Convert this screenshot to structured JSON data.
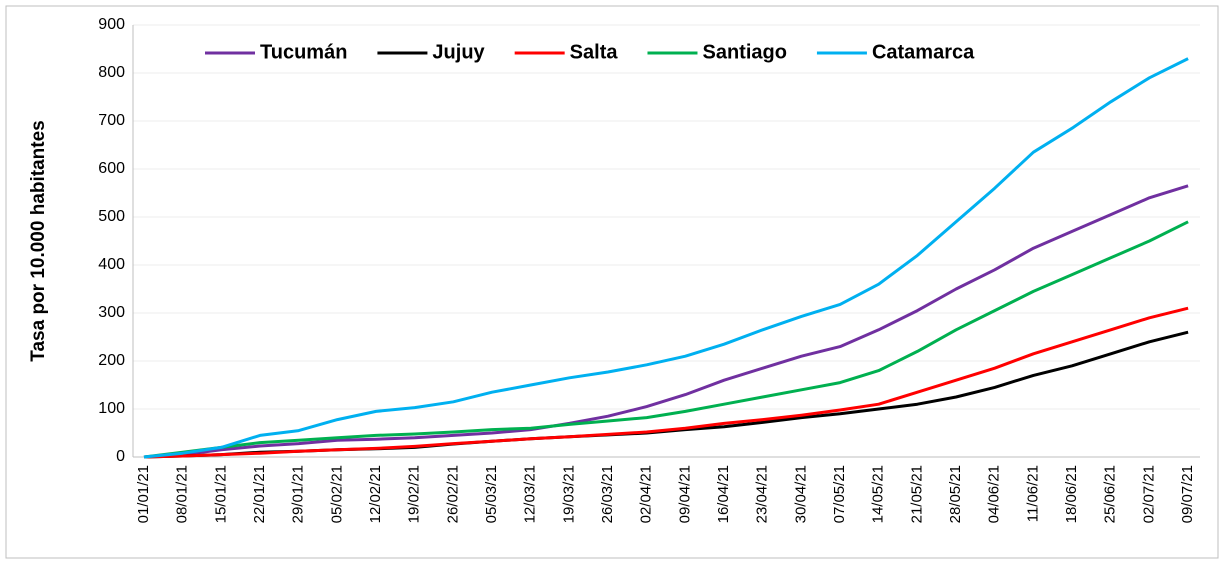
{
  "chart_data": {
    "type": "line",
    "y_label": "Tasa por 10.000 habitantes",
    "categories": [
      "01/01/21",
      "08/01/21",
      "15/01/21",
      "22/01/21",
      "29/01/21",
      "05/02/21",
      "12/02/21",
      "19/02/21",
      "26/02/21",
      "05/03/21",
      "12/03/21",
      "19/03/21",
      "26/03/21",
      "02/04/21",
      "09/04/21",
      "16/04/21",
      "23/04/21",
      "30/04/21",
      "07/05/21",
      "14/05/21",
      "21/05/21",
      "28/05/21",
      "04/06/21",
      "11/06/21",
      "18/06/21",
      "25/06/21",
      "02/07/21",
      "09/07/21"
    ],
    "series": [
      {
        "name": "Tucumán",
        "color": "#7030a0",
        "values": [
          0,
          5,
          15,
          23,
          28,
          35,
          37,
          40,
          45,
          50,
          57,
          70,
          85,
          105,
          130,
          160,
          185,
          210,
          230,
          265,
          305,
          350,
          390,
          435,
          470,
          505,
          540,
          565
        ]
      },
      {
        "name": "Jujuy",
        "color": "#000000",
        "values": [
          0,
          2,
          5,
          10,
          12,
          15,
          17,
          20,
          27,
          33,
          38,
          42,
          46,
          50,
          57,
          63,
          72,
          82,
          90,
          100,
          110,
          125,
          145,
          170,
          190,
          215,
          240,
          260
        ]
      },
      {
        "name": "Salta",
        "color": "#ff0000",
        "values": [
          0,
          2,
          5,
          8,
          12,
          15,
          18,
          22,
          28,
          33,
          38,
          42,
          47,
          52,
          60,
          70,
          78,
          87,
          98,
          110,
          135,
          160,
          185,
          215,
          240,
          265,
          290,
          310
        ]
      },
      {
        "name": "Santiago",
        "color": "#00b050",
        "values": [
          0,
          10,
          20,
          30,
          35,
          40,
          45,
          48,
          52,
          57,
          60,
          68,
          75,
          82,
          95,
          110,
          125,
          140,
          155,
          180,
          220,
          265,
          305,
          345,
          380,
          415,
          450,
          490
        ]
      },
      {
        "name": "Catamarca",
        "color": "#00b0f0",
        "values": [
          0,
          8,
          20,
          45,
          55,
          78,
          95,
          103,
          115,
          135,
          150,
          165,
          177,
          192,
          210,
          235,
          265,
          293,
          318,
          360,
          420,
          490,
          560,
          635,
          685,
          740,
          790,
          830
        ]
      }
    ],
    "ylim": [
      0,
      900
    ],
    "yticks": [
      0,
      100,
      200,
      300,
      400,
      500,
      600,
      700,
      800,
      900
    ],
    "grid": true
  }
}
